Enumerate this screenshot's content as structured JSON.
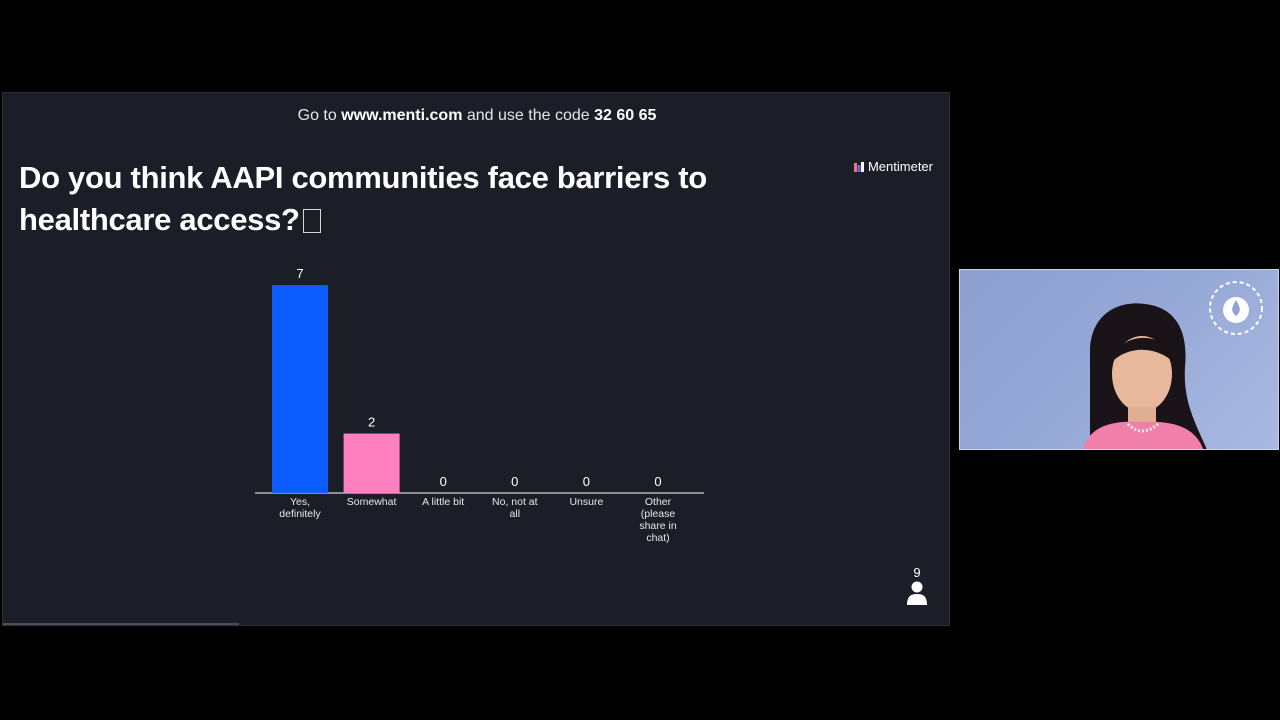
{
  "banner": {
    "prefix": "Go to",
    "url": "www.menti.com",
    "middle": "and use the code",
    "code": "32 60 65"
  },
  "brand": {
    "name": "Mentimeter",
    "icon": "mentimeter-logo-icon"
  },
  "question": {
    "text": "Do you think AAPI communities face barriers to healthcare access?"
  },
  "respondents": {
    "count": "9",
    "icon": "person-icon"
  },
  "colors": {
    "slide_bg": "#1b1e27",
    "bar_blue": "#0c5cff",
    "bar_pink": "#ff80bf",
    "text": "#ffffff"
  },
  "chart_data": {
    "type": "bar",
    "categories": [
      [
        "Yes,",
        "definitely"
      ],
      [
        "Somewhat"
      ],
      [
        "A little bit"
      ],
      [
        "No, not at",
        "all"
      ],
      [
        "Unsure"
      ],
      [
        "Other",
        "(please",
        "share in",
        "chat)"
      ]
    ],
    "values": [
      7,
      2,
      0,
      0,
      0,
      0
    ],
    "bar_colors": [
      "#0c5cff",
      "#ff80bf",
      "#8a8d96",
      "#8a8d96",
      "#8a8d96",
      "#8a8d96"
    ],
    "title": "",
    "xlabel": "",
    "ylabel": "",
    "ylim": [
      0,
      7
    ],
    "grid": false
  },
  "webcam": {
    "badge_icon": "nhf-bleeding-disorders-conference-logo"
  }
}
